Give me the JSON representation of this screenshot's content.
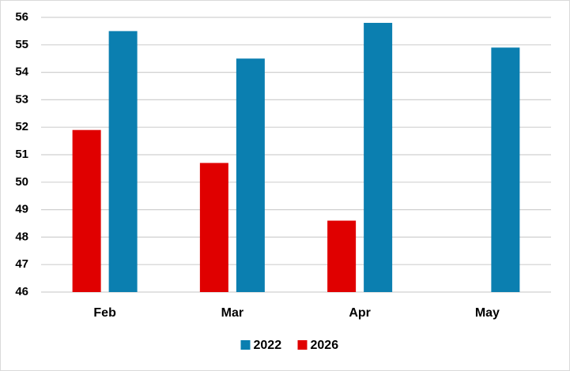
{
  "chart_data": {
    "type": "bar",
    "categories": [
      "Feb",
      "Mar",
      "Apr",
      "May"
    ],
    "series": [
      {
        "name": "2022",
        "color": "#0b7fb0",
        "values": [
          55.5,
          54.5,
          55.8,
          54.9
        ]
      },
      {
        "name": "2026",
        "color": "#e00000",
        "values": [
          51.9,
          50.7,
          48.6,
          null
        ]
      }
    ],
    "ylim": [
      46,
      56
    ],
    "yticks": [
      46,
      47,
      48,
      49,
      50,
      51,
      52,
      53,
      54,
      55,
      56
    ],
    "grid": true,
    "legend": "bottom"
  }
}
